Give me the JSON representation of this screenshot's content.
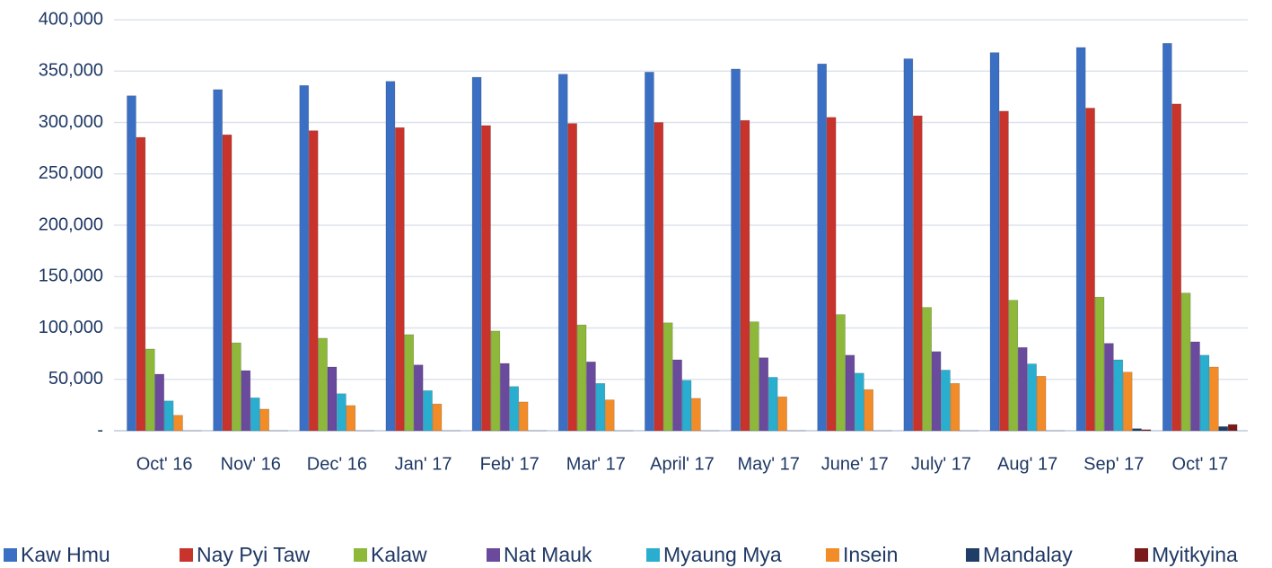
{
  "chart_data": {
    "type": "bar",
    "categories": [
      "Oct' 16",
      "Nov' 16",
      "Dec' 16",
      "Jan' 17",
      "Feb' 17",
      "Mar' 17",
      "April' 17",
      "May' 17",
      "June' 17",
      "July' 17",
      "Aug' 17",
      "Sep' 17",
      "Oct' 17"
    ],
    "series": [
      {
        "name": "Kaw Hmu",
        "color": "#3a6fc4",
        "values": [
          326000,
          332000,
          336000,
          340000,
          344000,
          347000,
          349000,
          352000,
          357000,
          362000,
          368000,
          373000,
          377000
        ]
      },
      {
        "name": "Nay Pyi Taw",
        "color": "#c8332b",
        "values": [
          285500,
          288000,
          292000,
          295000,
          297000,
          299000,
          300000,
          302000,
          305000,
          306500,
          311000,
          314000,
          318000
        ]
      },
      {
        "name": "Kalaw",
        "color": "#8db83a",
        "values": [
          79500,
          85500,
          90000,
          93500,
          97000,
          103000,
          105000,
          106000,
          113000,
          120000,
          127000,
          130000,
          134000
        ]
      },
      {
        "name": "Nat Mauk",
        "color": "#6a4a9c",
        "values": [
          55000,
          58500,
          62000,
          64000,
          65500,
          67000,
          69000,
          71000,
          73500,
          77000,
          81000,
          85000,
          86500
        ]
      },
      {
        "name": "Myaung Mya",
        "color": "#2aaed0",
        "values": [
          29000,
          32000,
          36000,
          39000,
          43000,
          46000,
          49000,
          52000,
          56000,
          59000,
          65000,
          69000,
          73500
        ]
      },
      {
        "name": "Insein",
        "color": "#f28c28",
        "values": [
          15000,
          21000,
          24500,
          26000,
          28000,
          30000,
          31500,
          33000,
          40000,
          46000,
          53000,
          57000,
          62000
        ]
      },
      {
        "name": "Mandalay",
        "color": "#1f3d66",
        "values": [
          0,
          0,
          0,
          0,
          0,
          0,
          0,
          0,
          0,
          0,
          0,
          2000,
          4000
        ]
      },
      {
        "name": "Myitkyina",
        "color": "#7a1a1a",
        "values": [
          0,
          0,
          0,
          0,
          0,
          0,
          0,
          0,
          0,
          0,
          0,
          1000,
          6000
        ]
      }
    ],
    "ylim": [
      0,
      400000
    ],
    "yticks": [
      {
        "value": 0,
        "label": "-"
      },
      {
        "value": 50000,
        "label": "50,000"
      },
      {
        "value": 100000,
        "label": "100,000"
      },
      {
        "value": 150000,
        "label": "150,000"
      },
      {
        "value": 200000,
        "label": "200,000"
      },
      {
        "value": 250000,
        "label": "250,000"
      },
      {
        "value": 300000,
        "label": "300,000"
      },
      {
        "value": 350000,
        "label": "350,000"
      },
      {
        "value": 400000,
        "label": "400,000"
      }
    ],
    "grid": true,
    "legend": "bottom"
  }
}
